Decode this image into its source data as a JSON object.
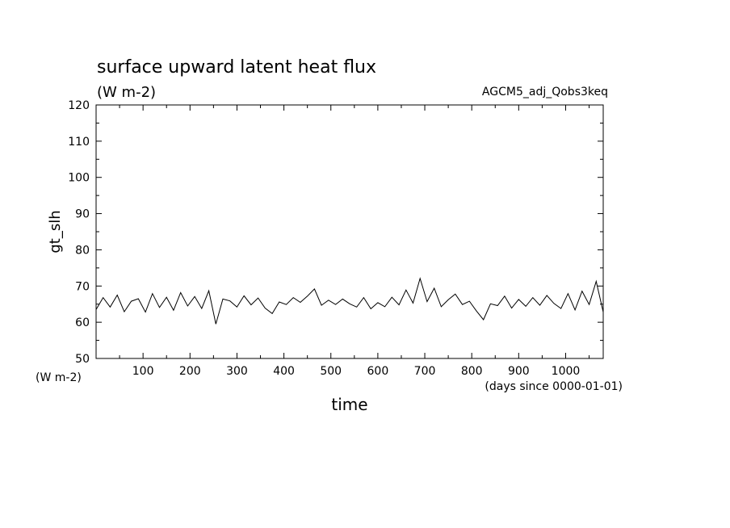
{
  "chart_data": {
    "type": "line",
    "title": "surface upward latent heat flux",
    "units_label": "(W m-2)",
    "run_label": "AGCM5_adj_Qobs3keq",
    "ylabel": "gt_slh",
    "xlabel": "time",
    "x_units_label": "(days since 0000-01-01)",
    "y_units_label": "(W m-2)",
    "xlim": [
      0,
      1080
    ],
    "ylim": [
      50,
      120
    ],
    "x_ticks": [
      100,
      200,
      300,
      400,
      500,
      600,
      700,
      800,
      900,
      1000
    ],
    "x_tick_labels": [
      "100",
      "200",
      "300",
      "400",
      "500",
      "600",
      "700",
      "800",
      "900",
      "1000"
    ],
    "y_ticks": [
      50,
      60,
      70,
      80,
      90,
      100,
      110,
      120
    ],
    "y_tick_labels": [
      "50",
      "60",
      "70",
      "80",
      "90",
      "100",
      "110",
      "120"
    ],
    "grid": false,
    "line_color": "#000000",
    "series": [
      {
        "x": [
          0,
          15,
          30,
          45,
          60,
          75,
          90,
          105,
          120,
          135,
          150,
          165,
          180,
          195,
          210,
          225,
          240,
          255,
          270,
          285,
          300,
          315,
          330,
          345,
          360,
          375,
          390,
          405,
          420,
          435,
          450,
          465,
          480,
          495,
          510,
          525,
          540,
          555,
          570,
          585,
          600,
          615,
          630,
          645,
          660,
          675,
          690,
          705,
          720,
          735,
          750,
          765,
          780,
          795,
          810,
          825,
          840,
          855,
          870,
          885,
          900,
          915,
          930,
          945,
          960,
          975,
          990,
          1005,
          1020,
          1035,
          1050,
          1065,
          1080
        ],
        "y": [
          63.5,
          66.8,
          64.2,
          67.5,
          62.9,
          65.8,
          66.5,
          62.8,
          67.9,
          64.1,
          66.9,
          63.3,
          68.2,
          64.5,
          67.1,
          63.8,
          68.7,
          59.5,
          66.4,
          65.9,
          64.2,
          67.3,
          64.8,
          66.7,
          63.9,
          62.4,
          65.6,
          64.9,
          66.8,
          65.5,
          67.2,
          69.2,
          64.7,
          66.1,
          64.9,
          66.4,
          65.1,
          64.2,
          66.8,
          63.7,
          65.4,
          64.3,
          66.9,
          64.8,
          68.9,
          65.3,
          72.1,
          65.7,
          69.4,
          64.3,
          66.2,
          67.8,
          64.9,
          65.8,
          63.1,
          60.7,
          65.1,
          64.6,
          67.2,
          63.9,
          66.3,
          64.4,
          66.8,
          64.7,
          67.4,
          65.2,
          63.8,
          67.9,
          63.4,
          68.6,
          64.9,
          71.3,
          62.8
        ]
      }
    ]
  }
}
